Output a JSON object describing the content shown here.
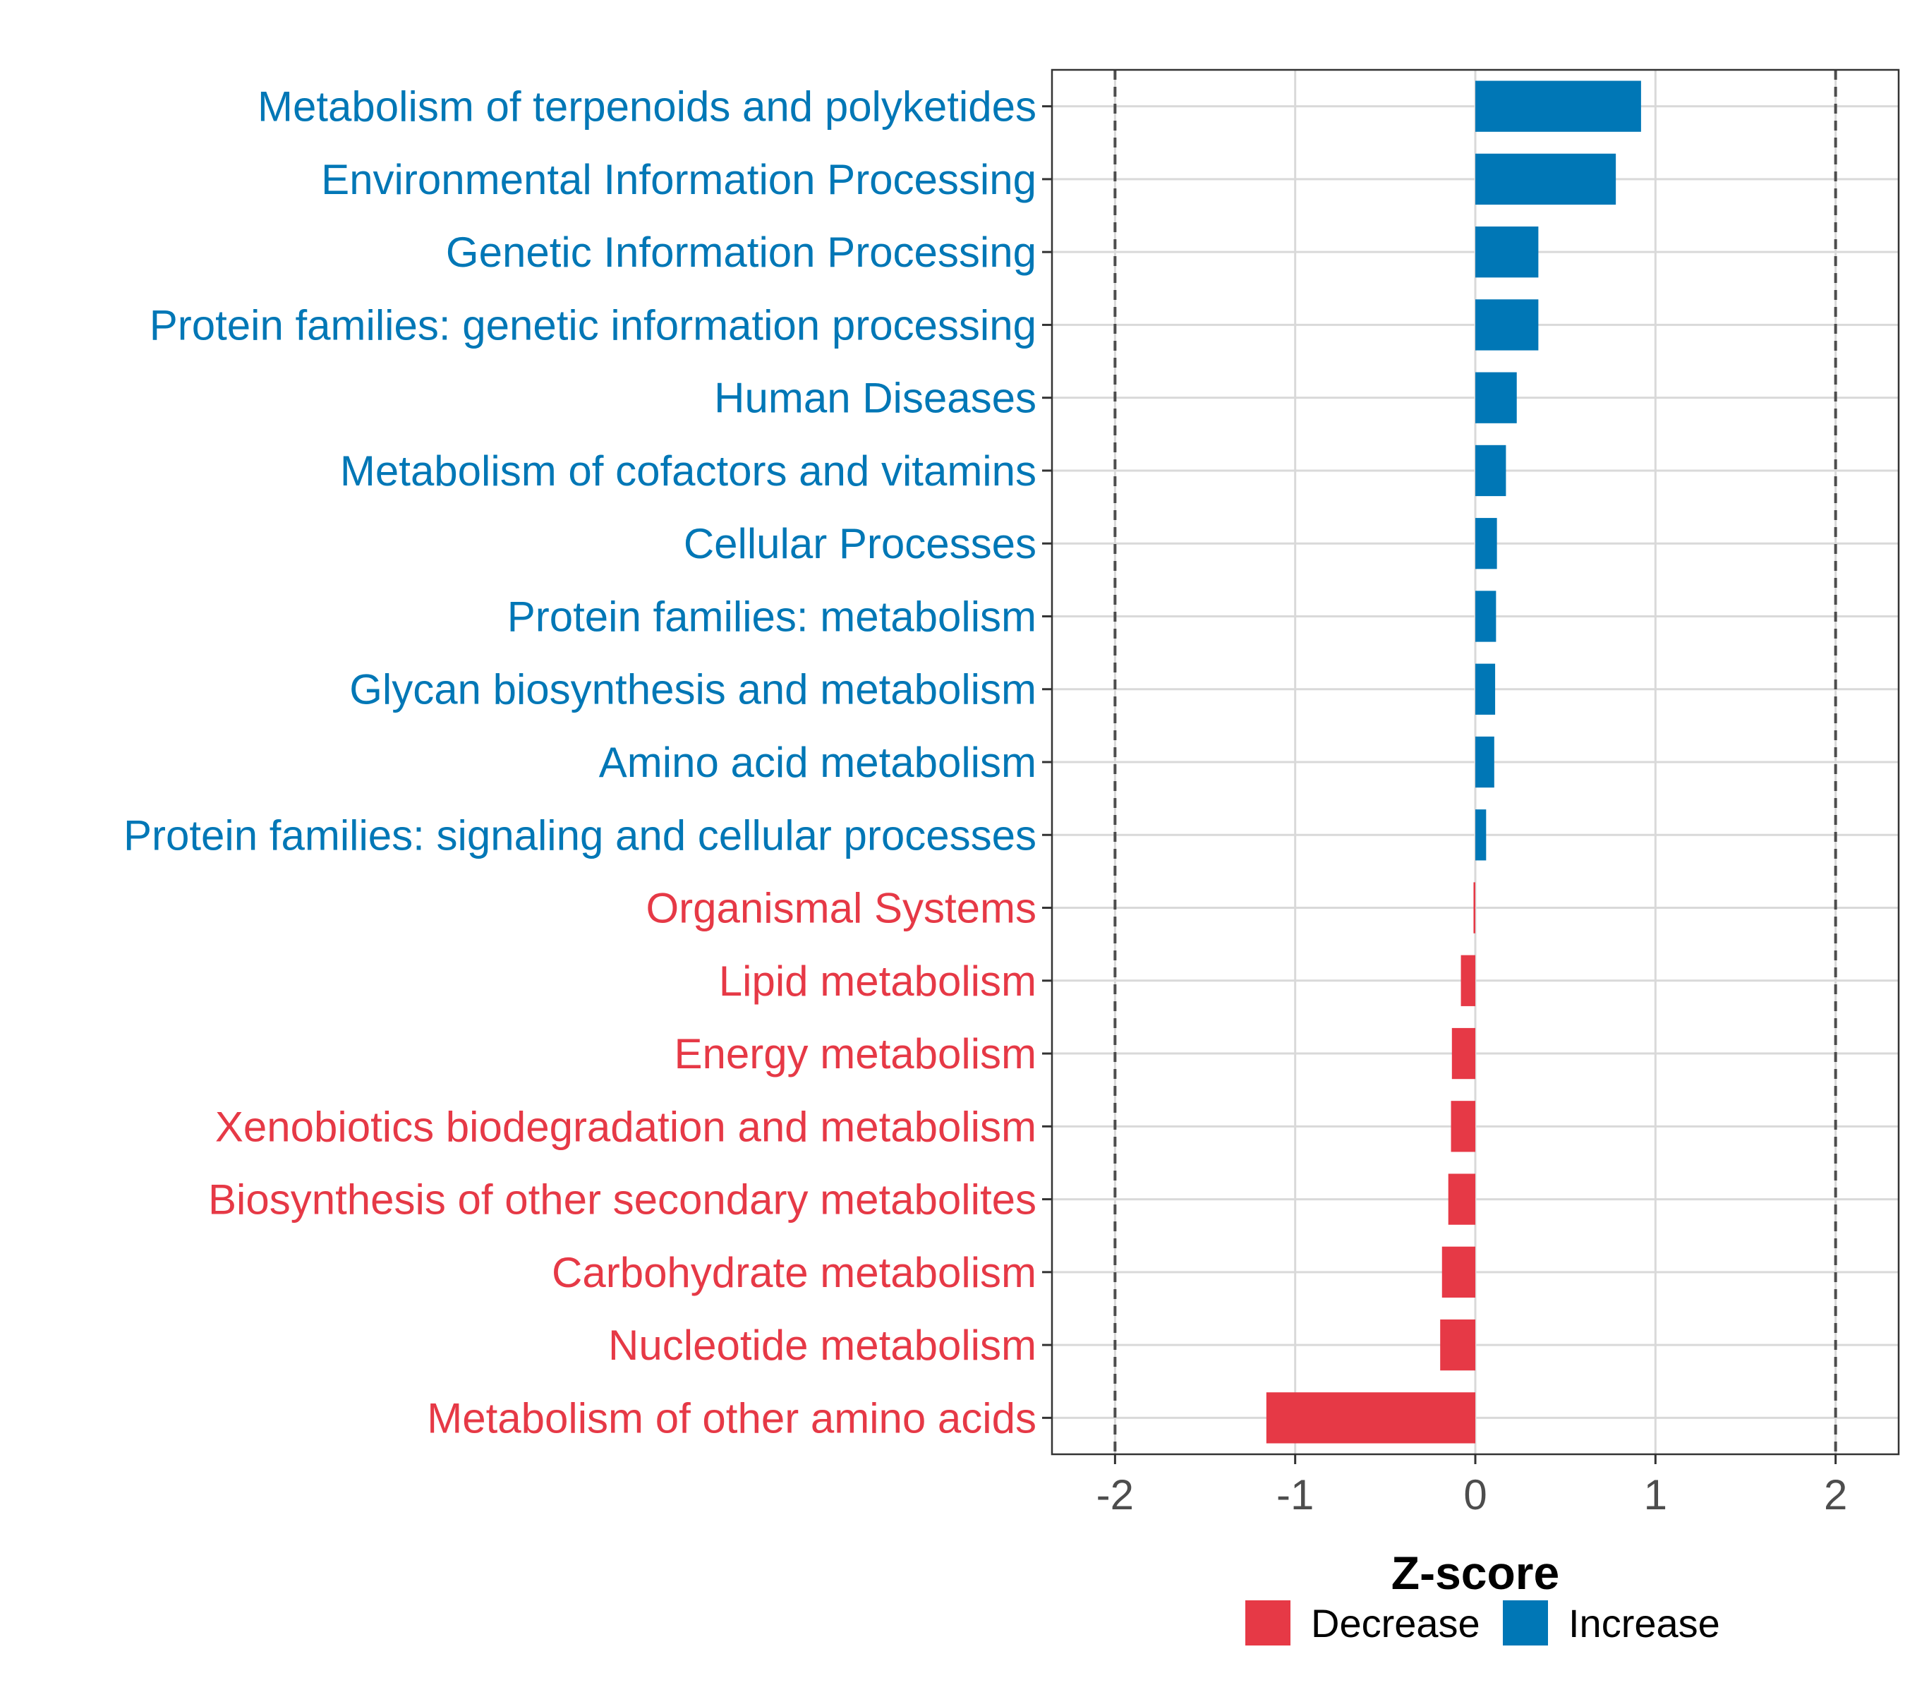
{
  "chart_data": {
    "type": "bar",
    "orientation": "horizontal",
    "title": "",
    "xlabel": "Z-score",
    "ylabel": "",
    "xlim": [
      -2.35,
      2.35
    ],
    "xticks": [
      -2,
      -1,
      0,
      1,
      2
    ],
    "xtick_labels": [
      "-2",
      "-1",
      "0",
      "1",
      "2"
    ],
    "reference_lines": [
      -2,
      2
    ],
    "grid": true,
    "legend_position": "bottom",
    "colors": {
      "Decrease": "#e63946",
      "Increase": "#0077b6"
    },
    "categories": [
      "Metabolism of terpenoids and polyketides",
      "Environmental Information Processing",
      "Genetic Information Processing",
      "Protein families: genetic information processing",
      "Human Diseases",
      "Metabolism of cofactors and vitamins",
      "Cellular Processes",
      "Protein families: metabolism",
      "Glycan biosynthesis and metabolism",
      "Amino acid metabolism",
      "Protein families: signaling and cellular processes",
      "Organismal Systems",
      "Lipid metabolism",
      "Energy metabolism",
      "Xenobiotics biodegradation and metabolism",
      "Biosynthesis of other secondary metabolites",
      "Carbohydrate metabolism",
      "Nucleotide metabolism",
      "Metabolism of other amino acids"
    ],
    "values": [
      0.92,
      0.78,
      0.35,
      0.35,
      0.23,
      0.17,
      0.12,
      0.115,
      0.11,
      0.105,
      0.06,
      -0.01,
      -0.08,
      -0.13,
      -0.135,
      -0.15,
      -0.185,
      -0.195,
      -1.16
    ],
    "groups": [
      "Increase",
      "Increase",
      "Increase",
      "Increase",
      "Increase",
      "Increase",
      "Increase",
      "Increase",
      "Increase",
      "Increase",
      "Increase",
      "Decrease",
      "Decrease",
      "Decrease",
      "Decrease",
      "Decrease",
      "Decrease",
      "Decrease",
      "Decrease"
    ],
    "legend": [
      {
        "name": "Decrease",
        "color": "#e63946"
      },
      {
        "name": "Increase",
        "color": "#0077b6"
      }
    ]
  }
}
